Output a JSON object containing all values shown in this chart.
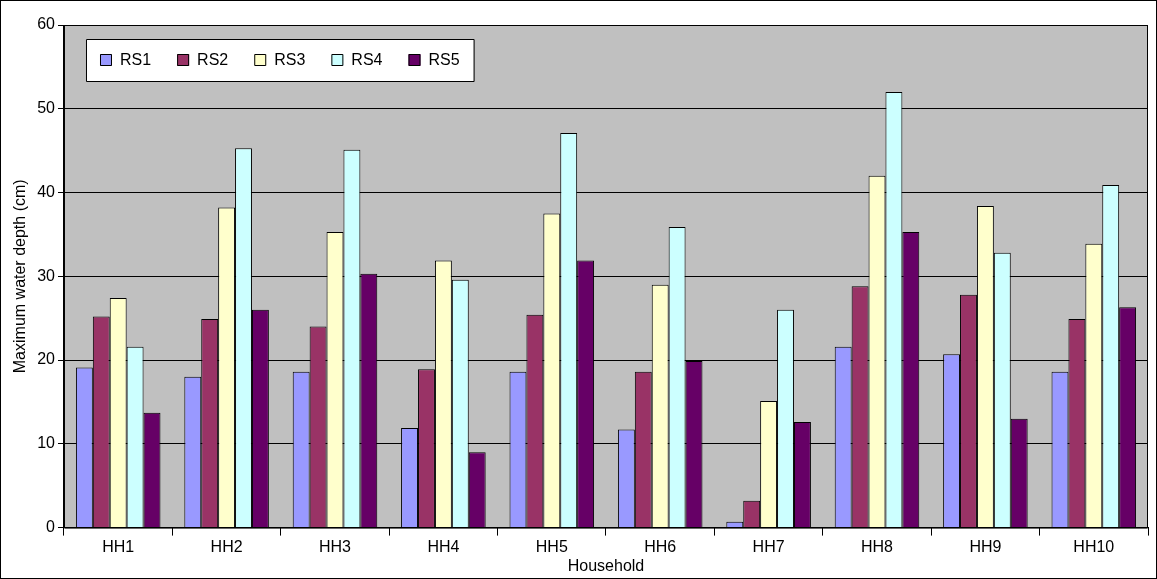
{
  "chart_data": {
    "type": "bar",
    "xlabel": "Household",
    "ylabel": "Maximum water depth (cm)",
    "categories": [
      "HH1",
      "HH2",
      "HH3",
      "HH4",
      "HH5",
      "HH6",
      "HH7",
      "HH8",
      "HH9",
      "HH10"
    ],
    "series": [
      {
        "name": "RS1",
        "color": "#9999ff",
        "values": [
          19.1,
          18,
          18.6,
          11.9,
          18.6,
          11.7,
          0.7,
          21.6,
          20.7,
          18.6
        ]
      },
      {
        "name": "RS2",
        "color": "#993366",
        "values": [
          25.2,
          24.9,
          24,
          18.9,
          25.4,
          18.6,
          3.2,
          28.8,
          27.8,
          24.9
        ]
      },
      {
        "name": "RS3",
        "color": "#ffffcc",
        "values": [
          27.4,
          38.2,
          35.3,
          31.9,
          37.5,
          29,
          15.1,
          42,
          38.4,
          33.9
        ]
      },
      {
        "name": "RS4",
        "color": "#ccffff",
        "values": [
          21.6,
          45.3,
          45.1,
          29.6,
          47.1,
          35.9,
          26,
          52,
          32.8,
          40.9
        ]
      },
      {
        "name": "RS5",
        "color": "#660066",
        "values": [
          13.7,
          26,
          30.3,
          9,
          31.9,
          19.9,
          12.6,
          35.3,
          13,
          26.3
        ]
      }
    ],
    "ylim": [
      0,
      60
    ],
    "yticks": [
      0,
      10,
      20,
      30,
      40,
      50,
      60
    ],
    "grid": "y",
    "legend": "top left"
  }
}
